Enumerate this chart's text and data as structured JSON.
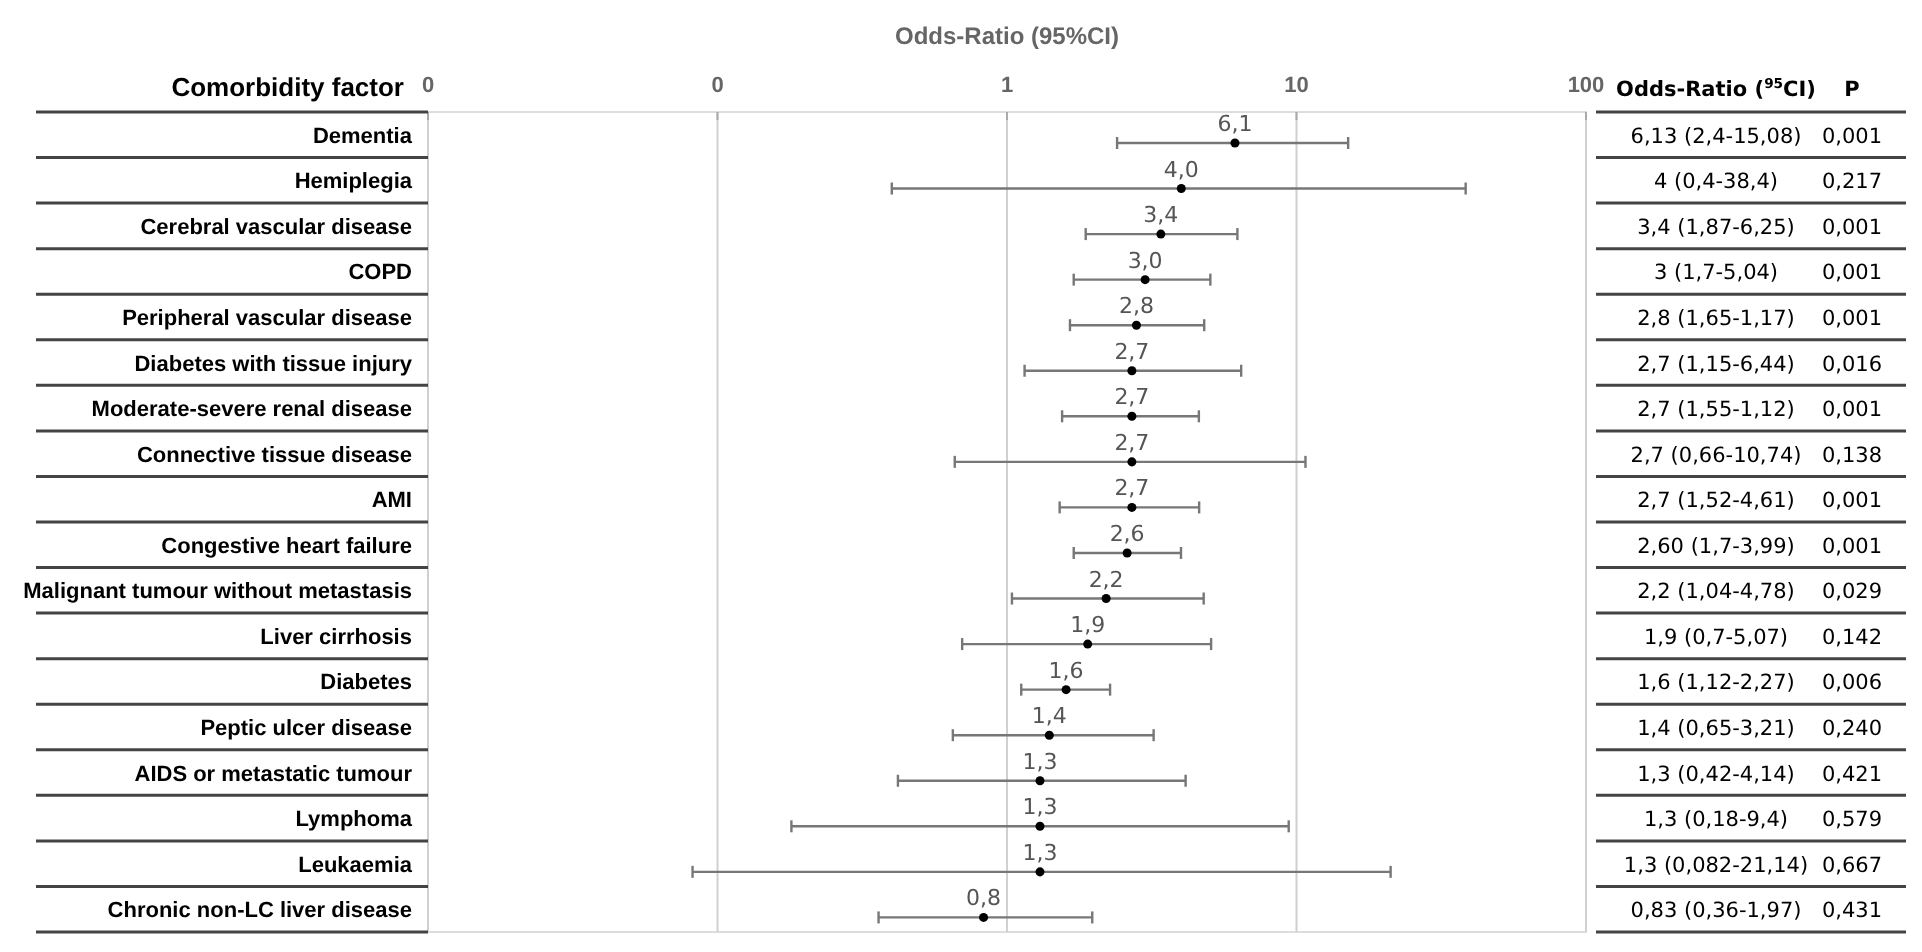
{
  "chart_data": {
    "type": "scatter",
    "orientation": "horizontal",
    "title": "Odds-Ratio (95%CI)",
    "ylabel": "Comorbidity factor",
    "categories": [
      "Dementia",
      "Hemiplegia",
      "Cerebral vascular disease",
      "COPD",
      "Peripheral vascular disease",
      "Diabetes with tissue injury",
      "Moderate-severe renal disease",
      "Connective tissue disease",
      "AMI",
      "Congestive heart failure",
      "Malignant tumour without metastasis",
      "Liver cirrhosis",
      "Diabetes",
      "Peptic ulcer disease",
      "AIDS or metastatic tumour",
      "Lymphoma",
      "Leukaemia",
      "Chronic non-LC liver disease"
    ],
    "series": [
      {
        "color": "#000000",
        "values": [
          6.13,
          4,
          3.4,
          3,
          2.8,
          2.7,
          2.7,
          2.7,
          2.7,
          2.6,
          2.2,
          1.9,
          1.6,
          1.4,
          1.3,
          1.3,
          1.3,
          0.83
        ],
        "value_labels": [
          "6,1",
          "4,0",
          "3,4",
          "3,0",
          "2,8",
          "2,7",
          "2,7",
          "2,7",
          "2,7",
          "2,6",
          "2,2",
          "1,9",
          "1,6",
          "1,4",
          "1,3",
          "1,3",
          "1,3",
          "0,8"
        ],
        "errors": [
          [
            2.4,
            15.08
          ],
          [
            0.4,
            38.4
          ],
          [
            1.87,
            6.25
          ],
          [
            1.7,
            5.04
          ],
          [
            1.65,
            4.8
          ],
          [
            1.15,
            6.44
          ],
          [
            1.55,
            4.6
          ],
          [
            0.66,
            10.74
          ],
          [
            1.52,
            4.61
          ],
          [
            1.7,
            3.99
          ],
          [
            1.04,
            4.78
          ],
          [
            0.7,
            5.07
          ],
          [
            1.12,
            2.27
          ],
          [
            0.65,
            3.21
          ],
          [
            0.42,
            4.14
          ],
          [
            0.18,
            9.4
          ],
          [
            0.082,
            21.14
          ],
          [
            0.36,
            1.97
          ]
        ]
      }
    ],
    "xlim": [
      0.01,
      100
    ],
    "xticks": [
      {
        "value": 0.01,
        "label": "0"
      },
      {
        "value": 0.1,
        "label": "0"
      },
      1,
      10,
      100
    ],
    "log": "x",
    "grid": "x",
    "marker": "circle",
    "annotations": [
      "Odds-Ratio ($^{95}$CI)",
      "P",
      "6,13 (2,4-15,08)",
      "0,001",
      "4 (0,4-38,4)",
      "0,217",
      "3,4 (1,87-6,25)",
      "0,001",
      "3 (1,7-5,04)",
      "0,001",
      "2,8 (1,65-1,17)",
      "0,001",
      "2,7 (1,15-6,44)",
      "0,016",
      "2,7 (1,55-1,12)",
      "0,001",
      "2,7 (0,66-10,74)",
      "0,138",
      "2,7 (1,52-4,61)",
      "0,001",
      "2,60 (1,7-3,99)",
      "0,001",
      "2,2 (1,04-4,78)",
      "0,029",
      "1,9 (0,7-5,07)",
      "0,142",
      "1,6 (1,12-2,27)",
      "0,006",
      "1,4 (0,65-3,21)",
      "0,240",
      "1,3 (0,42-4,14)",
      "0,421",
      "1,3 (0,18-9,4)",
      "0,579",
      "1,3 (0,082-21,14)",
      "0,667",
      "0,83 (0,36-1,97)",
      "0,431"
    ]
  }
}
